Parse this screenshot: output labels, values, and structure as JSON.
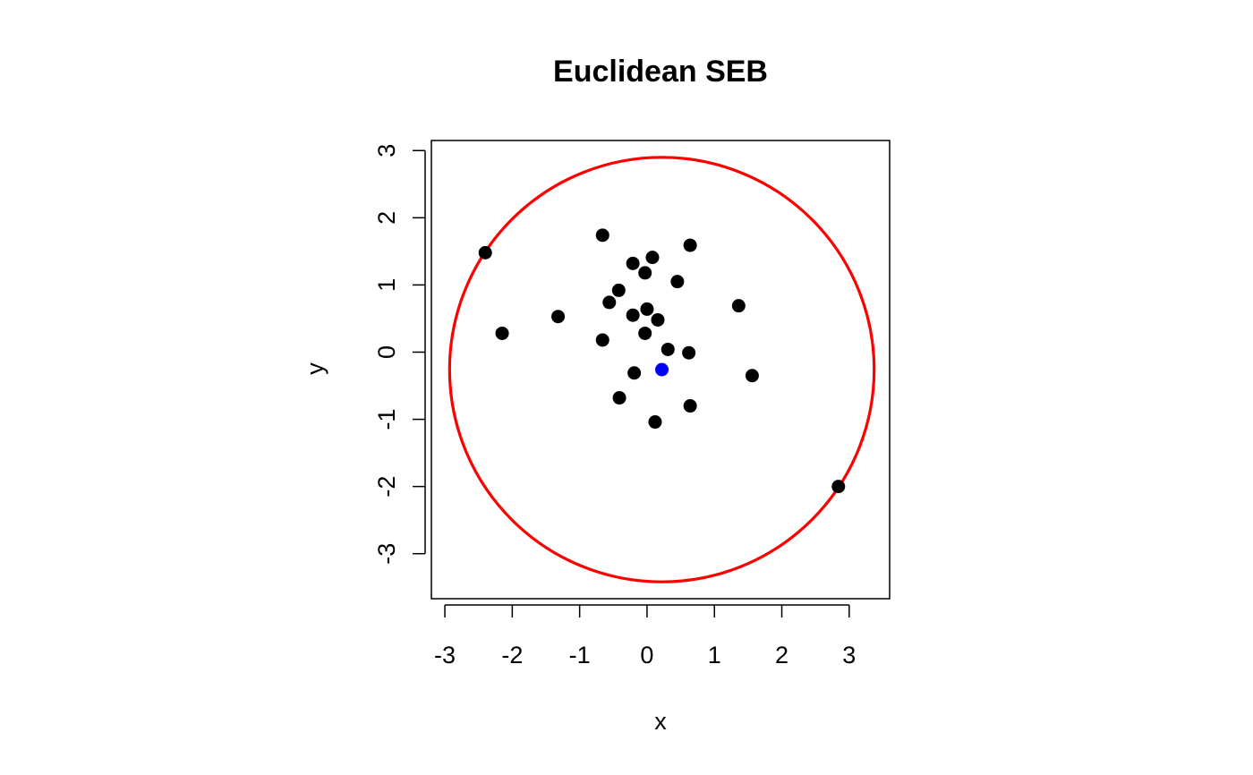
{
  "chart_data": {
    "type": "scatter",
    "title": "Euclidean SEB",
    "xlabel": "x",
    "ylabel": "y",
    "xlim": [
      -3.2,
      3.6
    ],
    "ylim": [
      -3.67,
      3.15
    ],
    "x_ticks": [
      -3,
      -2,
      -1,
      0,
      1,
      2,
      3
    ],
    "y_ticks": [
      -3,
      -2,
      -1,
      0,
      1,
      2,
      3
    ],
    "x_tick_labels": [
      "-3",
      "-2",
      "-1",
      "0",
      "1",
      "2",
      "3"
    ],
    "y_tick_labels": [
      "-3",
      "-2",
      "-1",
      "0",
      "1",
      "2",
      "3"
    ],
    "grid": false,
    "points": [
      {
        "x": -2.4,
        "y": 1.48
      },
      {
        "x": -2.15,
        "y": 0.28
      },
      {
        "x": -1.32,
        "y": 0.53
      },
      {
        "x": -0.66,
        "y": 1.74
      },
      {
        "x": -0.66,
        "y": 0.18
      },
      {
        "x": -0.56,
        "y": 0.74
      },
      {
        "x": -0.42,
        "y": 0.92
      },
      {
        "x": -0.41,
        "y": -0.68
      },
      {
        "x": -0.21,
        "y": 1.32
      },
      {
        "x": -0.21,
        "y": 0.55
      },
      {
        "x": -0.19,
        "y": -0.31
      },
      {
        "x": -0.03,
        "y": 1.18
      },
      {
        "x": -0.03,
        "y": 0.28
      },
      {
        "x": 0.0,
        "y": 0.64
      },
      {
        "x": 0.08,
        "y": 1.41
      },
      {
        "x": 0.12,
        "y": -1.04
      },
      {
        "x": 0.16,
        "y": 0.48
      },
      {
        "x": 0.31,
        "y": 0.04
      },
      {
        "x": 0.45,
        "y": 1.05
      },
      {
        "x": 0.62,
        "y": -0.01
      },
      {
        "x": 0.64,
        "y": 1.59
      },
      {
        "x": 0.64,
        "y": -0.8
      },
      {
        "x": 1.36,
        "y": 0.69
      },
      {
        "x": 1.56,
        "y": -0.35
      },
      {
        "x": 2.84,
        "y": -2.0
      }
    ],
    "center": {
      "x": 0.22,
      "y": -0.26
    },
    "radius": 3.15,
    "colors": {
      "points": "#000000",
      "center": "#0000ff",
      "circle": "#ff0000"
    }
  }
}
